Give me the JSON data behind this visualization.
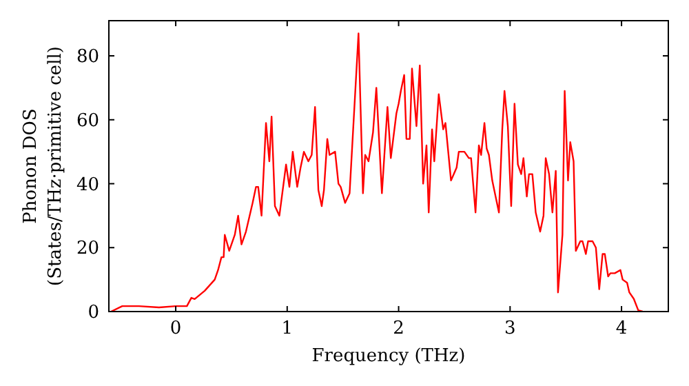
{
  "chart_data": {
    "type": "line",
    "xlabel": "Frequency (THz)",
    "ylabel": "Phonon DOS\n(States/THz·primitive cell)",
    "xlim": [
      -0.6,
      4.42
    ],
    "ylim": [
      0,
      91
    ],
    "xticks": [
      0,
      1,
      2,
      3,
      4
    ],
    "yticks": [
      0,
      20,
      40,
      60,
      80
    ],
    "grid": false,
    "line_style": "solid",
    "marker": "none",
    "series": [
      {
        "color": "#ff0000",
        "x": [
          -0.58,
          -0.48,
          -0.33,
          -0.15,
          0,
          0.1,
          0.14,
          0.17,
          0.26,
          0.35,
          0.38,
          0.41,
          0.43,
          0.44,
          0.48,
          0.53,
          0.56,
          0.59,
          0.63,
          0.69,
          0.72,
          0.74,
          0.77,
          0.81,
          0.84,
          0.86,
          0.89,
          0.93,
          0.99,
          1.02,
          1.05,
          1.09,
          1.12,
          1.15,
          1.19,
          1.22,
          1.25,
          1.28,
          1.31,
          1.33,
          1.36,
          1.38,
          1.43,
          1.46,
          1.48,
          1.52,
          1.56,
          1.64,
          1.68,
          1.7,
          1.73,
          1.77,
          1.8,
          1.85,
          1.9,
          1.93,
          1.98,
          2,
          2.02,
          2.05,
          2.07,
          2.1,
          2.12,
          2.16,
          2.19,
          2.22,
          2.25,
          2.27,
          2.3,
          2.32,
          2.36,
          2.4,
          2.42,
          2.47,
          2.52,
          2.54,
          2.59,
          2.63,
          2.65,
          2.69,
          2.72,
          2.74,
          2.77,
          2.79,
          2.81,
          2.84,
          2.9,
          2.93,
          2.95,
          2.98,
          3.01,
          3.04,
          3.07,
          3.1,
          3.12,
          3.15,
          3.17,
          3.2,
          3.23,
          3.27,
          3.3,
          3.32,
          3.35,
          3.38,
          3.41,
          3.43,
          3.47,
          3.49,
          3.52,
          3.54,
          3.57,
          3.59,
          3.63,
          3.65,
          3.68,
          3.7,
          3.74,
          3.77,
          3.8,
          3.83,
          3.85,
          3.88,
          3.9,
          3.94,
          3.99,
          4.01,
          4.05,
          4.07,
          4.11,
          4.15,
          4.19
        ],
        "values": [
          0,
          1.7,
          1.7,
          1.3,
          1.7,
          1.7,
          4.3,
          3.9,
          6.5,
          10,
          13,
          17,
          17,
          24,
          19,
          24,
          30,
          21,
          25,
          34,
          39,
          39,
          30,
          59,
          47,
          61,
          33,
          30,
          46,
          39,
          50,
          39,
          45,
          50,
          47,
          49,
          64,
          38,
          33,
          38,
          54,
          49,
          50,
          40,
          39,
          34,
          37,
          87,
          37,
          49,
          47,
          56,
          70,
          37,
          64,
          48,
          62,
          65,
          69,
          74,
          54,
          54,
          76,
          58,
          77,
          40,
          52,
          31,
          57,
          47,
          68,
          57,
          59,
          41,
          45,
          50,
          50,
          48,
          48,
          31,
          52,
          49,
          59,
          51,
          49,
          41,
          31,
          57,
          69,
          58,
          33,
          65,
          46,
          43,
          48,
          36,
          43,
          43,
          31,
          25,
          30,
          48,
          43,
          31,
          44,
          6,
          24,
          69,
          41,
          53,
          47,
          19,
          22,
          22,
          18,
          22,
          22,
          20,
          7,
          18,
          18,
          11,
          12,
          12,
          13,
          10,
          9,
          6,
          4,
          0.4,
          0
        ]
      }
    ]
  }
}
